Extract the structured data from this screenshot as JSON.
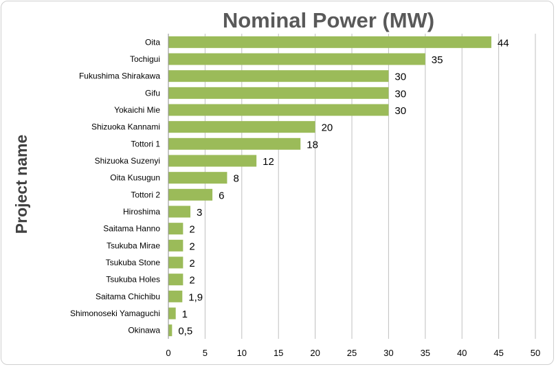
{
  "chart_data": {
    "type": "bar",
    "orientation": "horizontal",
    "title": "Nominal Power (MW)",
    "ylabel": "Project name",
    "xlabel": "",
    "xlim": [
      0,
      50
    ],
    "x_ticks": [
      "0",
      "5",
      "10",
      "15",
      "20",
      "25",
      "30",
      "35",
      "40",
      "45",
      "50"
    ],
    "grid": "vertical",
    "bar_color": "#9bbb59",
    "categories": [
      "Oita",
      "Tochigui",
      "Fukushima Shirakawa",
      "Gifu",
      "Yokaichi Mie",
      "Shizuoka Kannami",
      "Tottori 1",
      "Shizuoka Suzenyi",
      "Oita Kusugun",
      "Tottori 2",
      "Hiroshima",
      "Saitama Hanno",
      "Tsukuba Mirae",
      "Tsukuba Stone",
      "Tsukuba Holes",
      "Saitama Chichibu",
      "Shimonoseki Yamaguchi",
      "Okinawa"
    ],
    "values": [
      44,
      35,
      30,
      30,
      30,
      20,
      18,
      12,
      8,
      6,
      3,
      2,
      2,
      2,
      2,
      1.9,
      1,
      0.5
    ],
    "value_labels": [
      "44",
      "35",
      "30",
      "30",
      "30",
      "20",
      "18",
      "12",
      "8",
      "6",
      "3",
      "2",
      "2",
      "2",
      "2",
      "1,9",
      "1",
      "0,5"
    ]
  }
}
